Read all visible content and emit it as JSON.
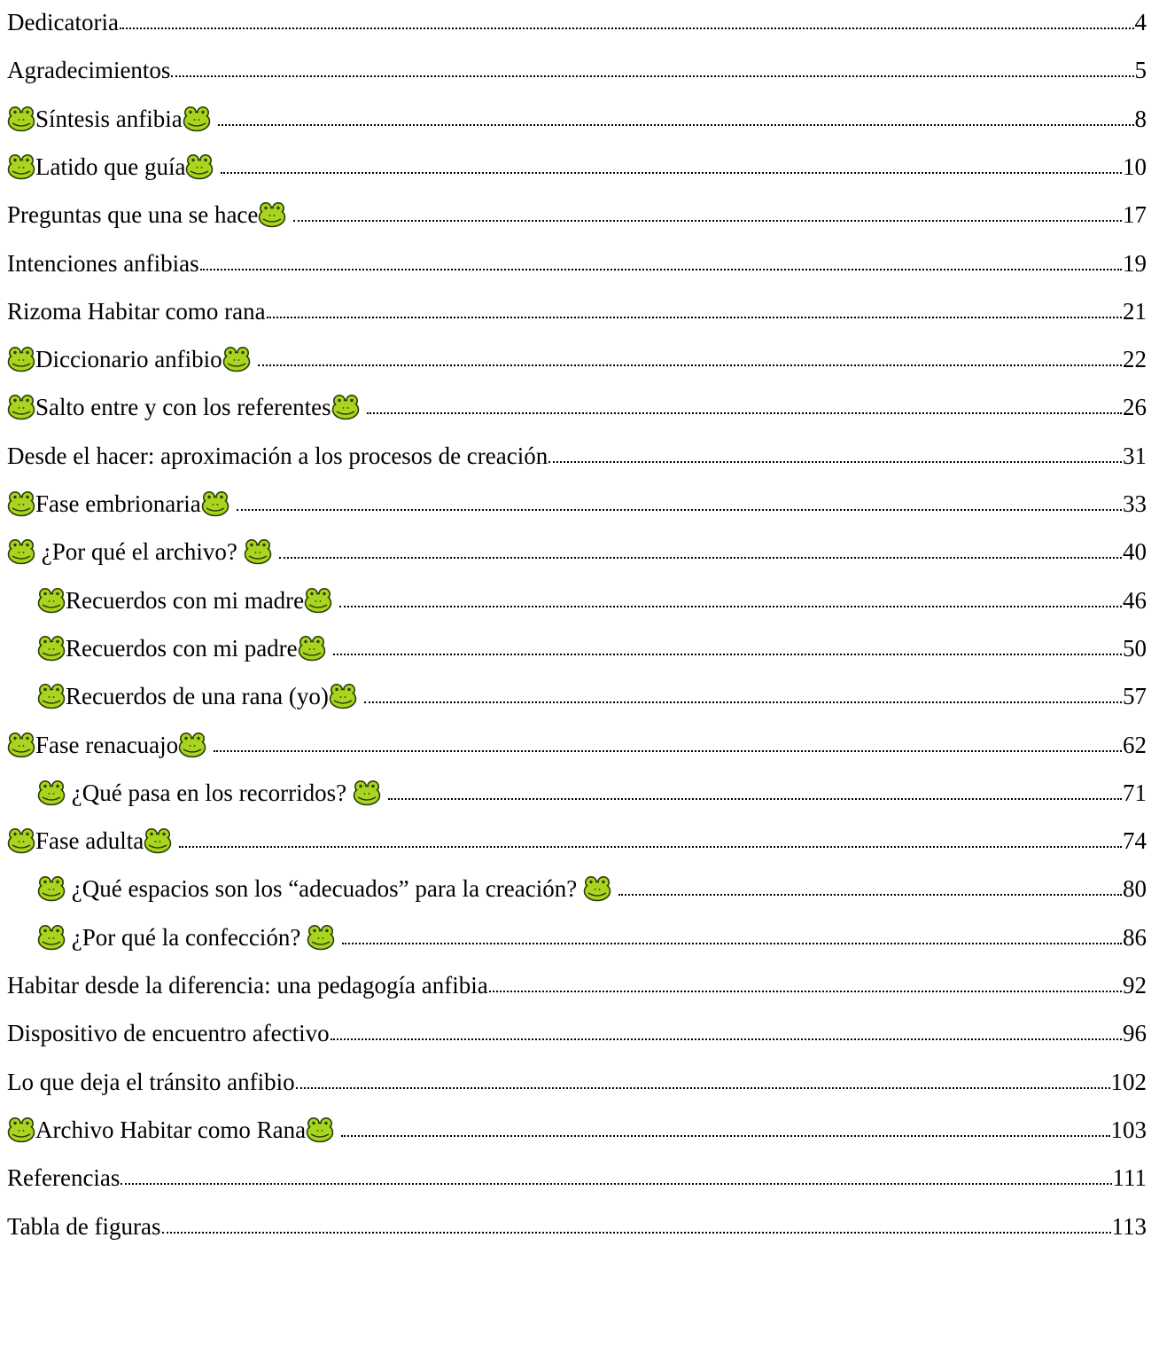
{
  "toc": {
    "entries": [
      {
        "id": "dedicatoria",
        "level": 1,
        "frog_before": false,
        "title": "Dedicatoria",
        "frog_after": "none",
        "page": "4"
      },
      {
        "id": "agradecimientos",
        "level": 1,
        "frog_before": false,
        "title": "Agradecimientos",
        "frog_after": "none",
        "page": "5"
      },
      {
        "id": "sintesis-anfibia",
        "level": 1,
        "frog_before": true,
        "title": "Síntesis anfibia",
        "frog_after": "tight",
        "page": "8"
      },
      {
        "id": "latido-que-guia",
        "level": 1,
        "frog_before": true,
        "title": "Latido que guía",
        "frog_after": "tight",
        "page": "10"
      },
      {
        "id": "preguntas",
        "level": 1,
        "frog_before": false,
        "title": "Preguntas que una se hace",
        "frog_after": "spaced",
        "page": "17"
      },
      {
        "id": "intenciones",
        "level": 1,
        "frog_before": false,
        "title": "Intenciones anfibias",
        "frog_after": "none",
        "page": "19"
      },
      {
        "id": "rizoma",
        "level": 1,
        "frog_before": false,
        "title": "Rizoma Habitar como rana",
        "frog_after": "none",
        "page": "21"
      },
      {
        "id": "diccionario",
        "level": 1,
        "frog_before": true,
        "title": "Diccionario anfibio",
        "frog_after": "spaced",
        "page": "22"
      },
      {
        "id": "salto",
        "level": 1,
        "frog_before": true,
        "title": "Salto entre y con los referentes",
        "frog_after": "tight",
        "page": "26"
      },
      {
        "id": "desde-el-hacer",
        "level": 1,
        "frog_before": false,
        "title": "Desde el hacer: aproximación a los procesos de creación",
        "frog_after": "none",
        "page": "31"
      },
      {
        "id": "fase-embrionaria",
        "level": 1,
        "frog_before": true,
        "title": "Fase embrionaria",
        "frog_after": "tight",
        "page": "33"
      },
      {
        "id": "por-que-archivo",
        "level": 1,
        "frog_before": true,
        "title": " ¿Por qué el archivo? ",
        "frog_after": "spaced",
        "page": "40"
      },
      {
        "id": "recuerdos-madre",
        "level": 2,
        "frog_before": true,
        "title": "Recuerdos con mi madre",
        "frog_after": "spaced",
        "page": "46"
      },
      {
        "id": "recuerdos-padre",
        "level": 2,
        "frog_before": true,
        "title": "Recuerdos con mi padre",
        "frog_after": "tight",
        "page": "50"
      },
      {
        "id": "recuerdos-rana",
        "level": 2,
        "frog_before": true,
        "title": "Recuerdos de una rana (yo)",
        "frog_after": "spaced",
        "page": "57"
      },
      {
        "id": "fase-renacuajo",
        "level": 1,
        "frog_before": true,
        "title": "Fase renacuajo",
        "frog_after": "tight",
        "page": "62"
      },
      {
        "id": "recorridos",
        "level": 2,
        "frog_before": true,
        "title": " ¿Qué pasa en los recorridos? ",
        "frog_after": "spaced",
        "page": "71"
      },
      {
        "id": "fase-adulta",
        "level": 1,
        "frog_before": true,
        "title": "Fase adulta",
        "frog_after": "tight",
        "page": "74"
      },
      {
        "id": "espacios",
        "level": 2,
        "frog_before": true,
        "title": " ¿Qué espacios son los “adecuados” para la creación? ",
        "frog_after": "spaced",
        "page": "80"
      },
      {
        "id": "confeccion",
        "level": 2,
        "frog_before": true,
        "title": " ¿Por qué la confección? ",
        "frog_after": "tight",
        "page": "86"
      },
      {
        "id": "habitar-diferencia",
        "level": 1,
        "frog_before": false,
        "title": "Habitar desde la diferencia: una pedagogía anfibia",
        "frog_after": "none",
        "page": "92"
      },
      {
        "id": "dispositivo",
        "level": 1,
        "frog_before": false,
        "title": "Dispositivo de encuentro afectivo",
        "frog_after": "none",
        "page": "96"
      },
      {
        "id": "transito",
        "level": 1,
        "frog_before": false,
        "title": "Lo que deja el tránsito anfibio",
        "frog_after": "none",
        "page": "102"
      },
      {
        "id": "archivo-rana",
        "level": 1,
        "frog_before": true,
        "title": "Archivo Habitar como Rana",
        "frog_after": "tight",
        "page": "103"
      },
      {
        "id": "referencias",
        "level": 1,
        "frog_before": false,
        "title": "Referencias",
        "frog_after": "none",
        "page": "111"
      },
      {
        "id": "tabla-figuras",
        "level": 1,
        "frog_before": false,
        "title": "Tabla de figuras",
        "frog_after": "none",
        "page": "113"
      }
    ]
  },
  "icons": {
    "frog": "frog-face-icon",
    "frog_color": "#a8d51d",
    "frog_outline": "#2b3d0a"
  }
}
